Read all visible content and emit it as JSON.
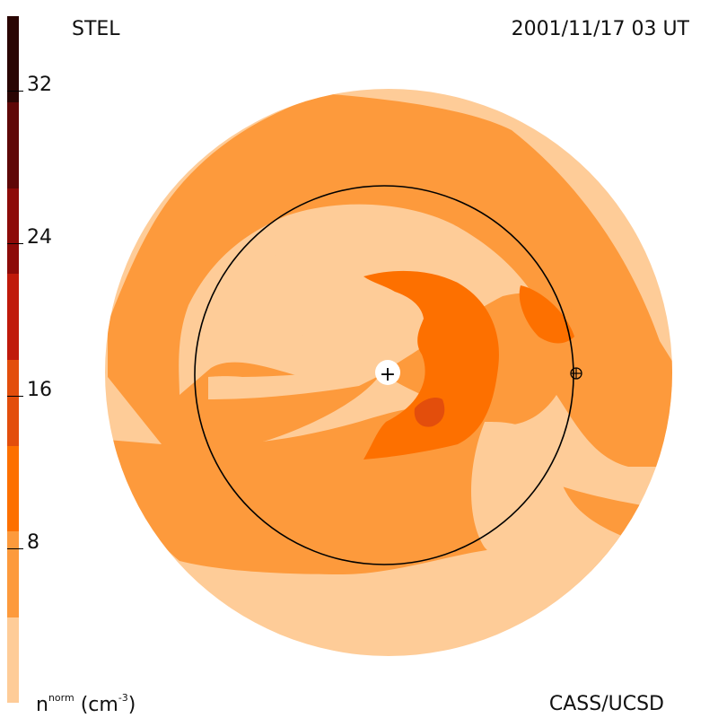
{
  "header": {
    "observatory": "STEL",
    "timestamp": "2001/11/17 03 UT"
  },
  "footer": {
    "credit": "CASS/UCSD",
    "unit_base": "n",
    "unit_super": "norm",
    "unit_paren_open": " (cm",
    "unit_exp": "-3",
    "unit_paren_close": ")"
  },
  "colorbar": {
    "range": [
      0,
      36
    ],
    "ticks": [
      "8",
      "16",
      "24",
      "32"
    ],
    "tick_values": [
      8,
      16,
      24,
      32
    ],
    "colors": [
      "#fecc98",
      "#fd9a3c",
      "#fd7000",
      "#e34e0c",
      "#c01a0b",
      "#8d0a08",
      "#5f0707",
      "#2a0503"
    ]
  },
  "map": {
    "sun_marker": "+",
    "earth_marker": "⊕",
    "colors": {
      "low": "#fecc98",
      "mid": "#fd9a3c",
      "high": "#fd7000",
      "peak": "#e34e0c",
      "orbit": "#000000"
    }
  }
}
